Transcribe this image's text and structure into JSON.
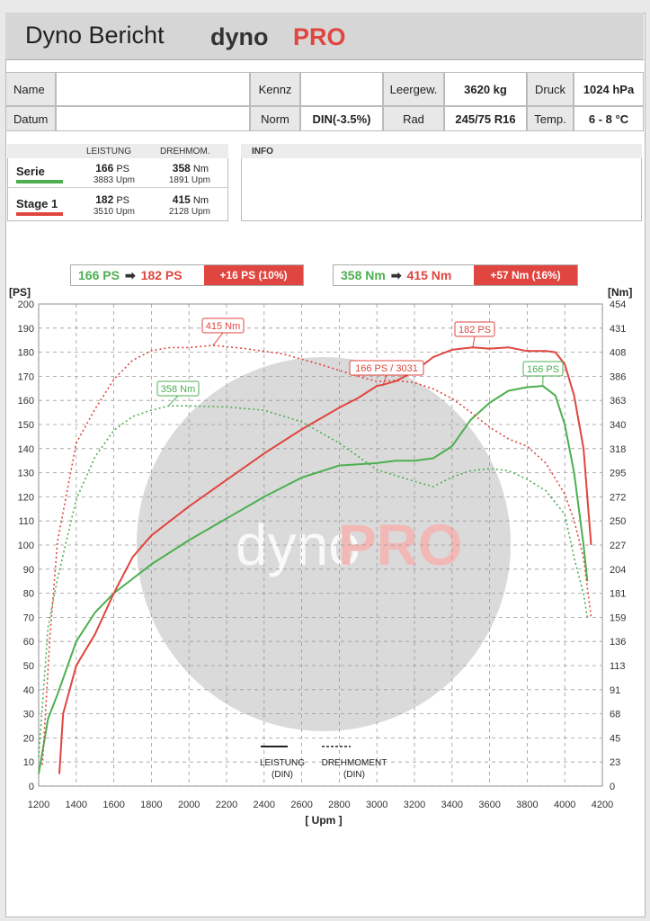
{
  "header": {
    "title": "Dyno Bericht",
    "brand_a": "dyno",
    "brand_b": "PRO"
  },
  "info_table": {
    "name_label": "Name",
    "name_value": "",
    "datum_label": "Datum",
    "datum_value": "",
    "kennz_label": "Kennz",
    "kennz_value": "",
    "norm_label": "Norm",
    "norm_value": "DIN(-3.5%)",
    "leergew_label": "Leergew.",
    "leergew_value": "3620 kg",
    "rad_label": "Rad",
    "rad_value": "245/75 R16",
    "druck_label": "Druck",
    "druck_value": "1024 hPa",
    "temp_label": "Temp.",
    "temp_value": "6 - 8 °C"
  },
  "summary": {
    "col_power": "LEISTUNG",
    "col_torque": "DREHMOM.",
    "rows": [
      {
        "name": "Serie",
        "color": "#4caf50",
        "power": "166",
        "power_unit": "PS",
        "power_rpm": "3883 Upm",
        "torque": "358",
        "torque_unit": "Nm",
        "torque_rpm": "1891 Upm"
      },
      {
        "name": "Stage 1",
        "color": "#e0453f",
        "power": "182",
        "power_unit": "PS",
        "power_rpm": "3510 Upm",
        "torque": "415",
        "torque_unit": "Nm",
        "torque_rpm": "2128 Upm"
      }
    ],
    "info_label": "INFO"
  },
  "comparison": {
    "power_before": "166 PS",
    "power_after": "182 PS",
    "power_gain": "+16 PS  (10%)",
    "torque_before": "358 Nm",
    "torque_after": "415 Nm",
    "torque_gain": "+57 Nm  (16%)",
    "arrow": "➡"
  },
  "chart_data": {
    "type": "line",
    "xlabel": "[ Upm ]",
    "ylabel_left": "[PS]",
    "ylabel_right": "[Nm]",
    "watermark_a": "dyno",
    "watermark_b": "PRO",
    "xlim": [
      1200,
      4200
    ],
    "ylim_left": [
      0,
      200
    ],
    "ylim_right": [
      0,
      454
    ],
    "x_ticks": [
      1200,
      1400,
      1600,
      1800,
      2000,
      2200,
      2400,
      2600,
      2800,
      3000,
      3200,
      3400,
      3600,
      3800,
      4000,
      4200
    ],
    "y_ticks_left": [
      0,
      10,
      20,
      30,
      40,
      50,
      60,
      70,
      80,
      90,
      100,
      110,
      120,
      130,
      140,
      150,
      160,
      170,
      180,
      190,
      200
    ],
    "y_ticks_right": [
      0,
      23,
      45,
      68,
      91,
      113,
      136,
      159,
      181,
      204,
      227,
      250,
      272,
      295,
      318,
      340,
      363,
      386,
      408,
      431,
      454
    ],
    "grid": true,
    "legend": {
      "power_label": "LEISTUNG\n(DIN)",
      "torque_label": "DREHMOMENT\n(DIN)",
      "position": "bottom-center"
    },
    "series": [
      {
        "name": "Serie",
        "quantity": "Leistung (PS)",
        "color": "#4caf50",
        "style": "solid",
        "x": [
          1200,
          1250,
          1300,
          1400,
          1500,
          1600,
          1700,
          1800,
          2000,
          2200,
          2400,
          2600,
          2800,
          2900,
          3000,
          3100,
          3200,
          3300,
          3400,
          3500,
          3600,
          3700,
          3800,
          3883,
          3950,
          4000,
          4050,
          4100,
          4120
        ],
        "y": [
          5,
          28,
          38,
          60,
          72,
          80,
          86,
          92,
          102,
          111,
          120,
          128,
          133,
          133.5,
          134,
          135,
          135,
          136,
          141,
          152,
          159,
          164,
          165.5,
          166,
          162,
          150,
          130,
          100,
          85
        ]
      },
      {
        "name": "Stage 1",
        "quantity": "Leistung (PS)",
        "color": "#e0453f",
        "style": "solid",
        "x": [
          1310,
          1330,
          1400,
          1500,
          1600,
          1700,
          1800,
          2000,
          2200,
          2400,
          2600,
          2800,
          2900,
          3000,
          3031,
          3100,
          3200,
          3300,
          3400,
          3510,
          3600,
          3700,
          3800,
          3900,
          3950,
          4000,
          4050,
          4100,
          4140
        ],
        "y": [
          5,
          30,
          50,
          63,
          80,
          95,
          104,
          116,
          127,
          138,
          148,
          157,
          161,
          166,
          166.5,
          168,
          172,
          178,
          181,
          182,
          181.5,
          182,
          180.5,
          180.5,
          180,
          175,
          162,
          140,
          100
        ]
      },
      {
        "name": "Serie",
        "quantity": "Drehmoment (Nm)",
        "color": "#4caf50",
        "style": "dotted",
        "x": [
          1200,
          1250,
          1300,
          1400,
          1500,
          1600,
          1700,
          1800,
          1891,
          2000,
          2200,
          2400,
          2600,
          2800,
          3000,
          3200,
          3300,
          3400,
          3500,
          3600,
          3700,
          3800,
          3900,
          4000,
          4050,
          4100,
          4120
        ],
        "y": [
          27,
          150,
          195,
          270,
          310,
          335,
          348,
          354,
          358,
          358,
          357,
          354,
          343,
          323,
          298,
          287,
          282,
          291,
          297,
          299,
          297,
          289,
          278,
          256,
          215,
          181,
          159
        ]
      },
      {
        "name": "Stage 1",
        "quantity": "Drehmoment (Nm)",
        "color": "#e0453f",
        "style": "dotted",
        "x": [
          1220,
          1260,
          1300,
          1400,
          1500,
          1600,
          1700,
          1800,
          1900,
          2000,
          2128,
          2300,
          2500,
          2700,
          2900,
          3000,
          3100,
          3200,
          3300,
          3400,
          3500,
          3600,
          3700,
          3800,
          3900,
          4000,
          4050,
          4100,
          4140
        ],
        "y": [
          20,
          140,
          230,
          323,
          355,
          383,
          401,
          410,
          413,
          413,
          415,
          412,
          407,
          397,
          386,
          381,
          382,
          380,
          374,
          365,
          352,
          338,
          327,
          320,
          304,
          275,
          250,
          215,
          159
        ]
      }
    ],
    "annotations": [
      {
        "text": "415 Nm",
        "series": "Stage 1 Drehmoment",
        "x": 2128,
        "y": 415,
        "color": "#e0453f"
      },
      {
        "text": "358 Nm",
        "series": "Serie Drehmoment",
        "x": 1891,
        "y": 358,
        "color": "#4caf50"
      },
      {
        "text": "182 PS",
        "series": "Stage 1 Leistung",
        "x": 3510,
        "y": 182,
        "color": "#e0453f"
      },
      {
        "text": "166 PS / 3031",
        "series": "Stage 1 Leistung",
        "x": 3031,
        "y": 166,
        "color": "#e0453f"
      },
      {
        "text": "166 PS",
        "series": "Serie Leistung",
        "x": 3883,
        "y": 166,
        "color": "#4caf50"
      }
    ]
  }
}
